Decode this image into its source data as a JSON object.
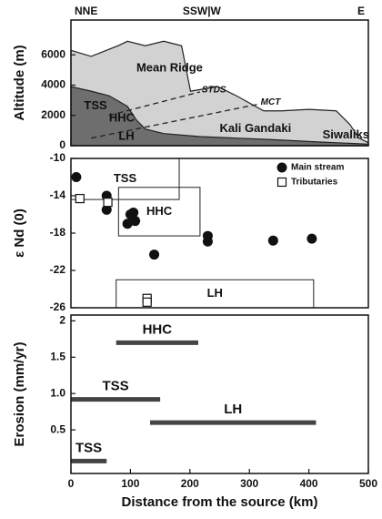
{
  "chart_data": [
    {
      "type": "area",
      "ylabel": "Altitude (m)",
      "xlim": [
        0,
        500
      ],
      "ylim": [
        0,
        8300
      ],
      "yticks": [
        0,
        2000,
        4000,
        6000
      ],
      "top_labels": [
        {
          "x": 0,
          "label": "NNE"
        },
        {
          "x": 220,
          "label": "SSW|W"
        },
        {
          "x": 500,
          "label": "E"
        }
      ],
      "series": [
        {
          "color": "#d2d2d2",
          "fill": true,
          "x": [
            0,
            34,
            79,
            95,
            125,
            156,
            186,
            201,
            247,
            278,
            324,
            354,
            400,
            446,
            469,
            484,
            500
          ],
          "values": [
            6300,
            5900,
            6600,
            6900,
            6600,
            6900,
            6600,
            3600,
            3900,
            3300,
            2300,
            2300,
            2400,
            2300,
            1400,
            500,
            200
          ]
        },
        {
          "color": "#6e6e6e",
          "fill": true,
          "x": [
            0,
            34,
            64,
            95,
            110,
            125,
            156,
            217,
            278,
            339,
            415,
            500
          ],
          "values": [
            3900,
            3600,
            3300,
            2600,
            1700,
            1100,
            800,
            600,
            500,
            400,
            250,
            100
          ]
        },
        {
          "name": "STDS",
          "color": "#222",
          "dash": true,
          "x": [
            64,
            217
          ],
          "values": [
            2000,
            3550
          ]
        },
        {
          "name": "MCT",
          "color": "#222",
          "dash": true,
          "x": [
            34,
            316
          ],
          "values": [
            500,
            2750
          ]
        }
      ],
      "annotations": [
        {
          "text": "Mean Ridge",
          "x": 110,
          "y": 5100
        },
        {
          "text": "TSS",
          "x": 22,
          "y": 2600
        },
        {
          "text": "HHC",
          "x": 64,
          "y": 1800
        },
        {
          "text": "LH",
          "x": 80,
          "y": 600
        },
        {
          "text": "Kali Gandaki",
          "x": 250,
          "y": 1100
        },
        {
          "text": "Siwaliks",
          "x": 423,
          "y": 700
        }
      ]
    },
    {
      "type": "scatter",
      "ylabel": "ε Nd (0)",
      "xlim": [
        0,
        500
      ],
      "ylim": [
        -26,
        -10
      ],
      "yticks": [
        -10,
        -14,
        -18,
        -22,
        -26
      ],
      "legend": "upper right",
      "series": [
        {
          "name": "Main stream",
          "marker": "circle",
          "color": "#111",
          "x": [
            9,
            60,
            60,
            100,
            105,
            95,
            108,
            140,
            230,
            230,
            340,
            405
          ],
          "values": [
            -12,
            -14,
            -15.5,
            -16,
            -15.8,
            -17,
            -16.7,
            -20.3,
            -18.3,
            -18.9,
            -18.8,
            -18.6
          ]
        },
        {
          "name": "Tributaries",
          "marker": "square",
          "color": "#111",
          "x": [
            15,
            62,
            128,
            128
          ],
          "values": [
            -14.3,
            -14.7,
            -25,
            -25.4
          ]
        }
      ],
      "boxes": [
        {
          "label": "TSS",
          "x": [
            0,
            182
          ],
          "y": [
            -14.4,
            -10
          ]
        },
        {
          "label": "HHC",
          "x": [
            80,
            217
          ],
          "y": [
            -18.3,
            -13.1
          ]
        },
        {
          "label": "LH",
          "x": [
            76,
            408
          ],
          "y": [
            -26,
            -23
          ]
        }
      ]
    },
    {
      "type": "range",
      "ylabel": "Erosion (mm/yr)",
      "xlabel": "Distance from the source (km)",
      "xlim": [
        0,
        500
      ],
      "xticks": [
        0,
        100,
        200,
        300,
        400,
        500
      ],
      "ylim": [
        -0.1,
        2.08
      ],
      "yticks": [
        {
          "value": 0.5,
          "label": "0.5"
        },
        {
          "value": 1,
          "label": "1.0"
        },
        1.5,
        2
      ],
      "color": "#444",
      "bars": [
        {
          "label": "TSS",
          "x": [
            0,
            60
          ],
          "value": 0.07
        },
        {
          "label": "TSS",
          "x": [
            0,
            150
          ],
          "value": 0.92
        },
        {
          "label": "HHC",
          "x": [
            76,
            214
          ],
          "value": 1.7
        },
        {
          "label": "LH",
          "x": [
            133,
            412
          ],
          "value": 0.6
        }
      ]
    }
  ]
}
